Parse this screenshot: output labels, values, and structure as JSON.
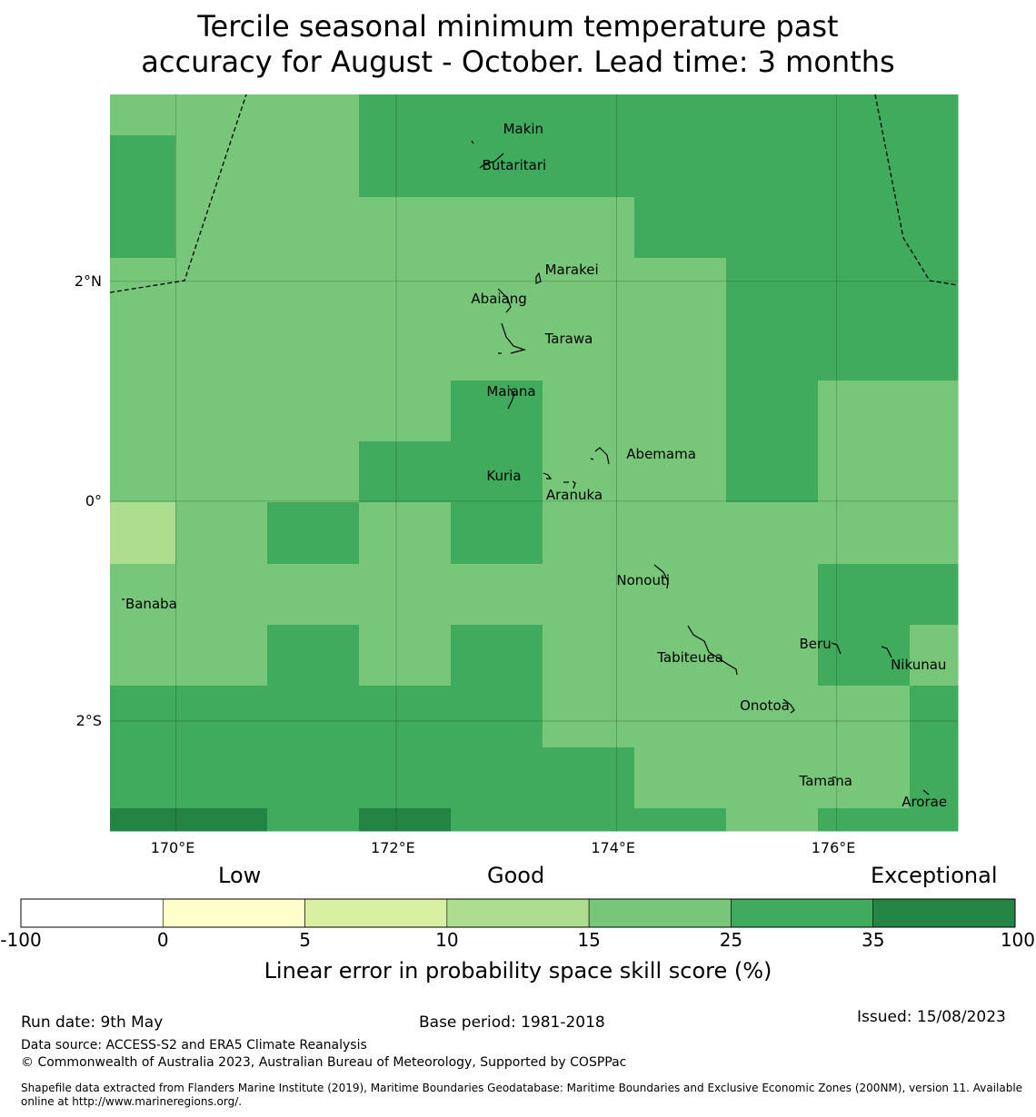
{
  "title": {
    "line1": "Tercile seasonal minimum temperature past",
    "line2": "accuracy for August - October. Lead time: 3 months"
  },
  "map": {
    "lon_range": [
      169.4,
      177.1
    ],
    "lat_range": [
      -3.0,
      3.7
    ],
    "lon_ticks": [
      {
        "value": 170,
        "label": "170°E"
      },
      {
        "value": 172,
        "label": "172°E"
      },
      {
        "value": 174,
        "label": "174°E"
      },
      {
        "value": 176,
        "label": "176°E"
      }
    ],
    "lat_ticks": [
      {
        "value": 2,
        "label": "2°N"
      },
      {
        "value": 0,
        "label": "0°"
      },
      {
        "value": -2,
        "label": "2°S"
      }
    ],
    "places": [
      {
        "name": "Makin",
        "lon": 172.97,
        "lat": 3.38
      },
      {
        "name": "Butaritari",
        "lon": 172.78,
        "lat": 3.05
      },
      {
        "name": "Marakei",
        "lon": 173.35,
        "lat": 2.1
      },
      {
        "name": "Abaiang",
        "lon": 172.68,
        "lat": 1.83
      },
      {
        "name": "Tarawa",
        "lon": 173.35,
        "lat": 1.47
      },
      {
        "name": "Maiana",
        "lon": 172.82,
        "lat": 0.99
      },
      {
        "name": "Abemama",
        "lon": 174.09,
        "lat": 0.42
      },
      {
        "name": "Kuria",
        "lon": 172.82,
        "lat": 0.22
      },
      {
        "name": "Aranuka",
        "lon": 173.36,
        "lat": 0.05
      },
      {
        "name": "Banaba",
        "lon": 169.54,
        "lat": -0.94
      },
      {
        "name": "Nonouti",
        "lon": 174.0,
        "lat": -0.73
      },
      {
        "name": "Tabiteuea",
        "lon": 174.37,
        "lat": -1.43
      },
      {
        "name": "Beru",
        "lon": 175.66,
        "lat": -1.31
      },
      {
        "name": "Nikunau",
        "lon": 176.49,
        "lat": -1.5
      },
      {
        "name": "Onotoa",
        "lon": 175.12,
        "lat": -1.87
      },
      {
        "name": "Tamana",
        "lon": 175.66,
        "lat": -2.55
      },
      {
        "name": "Arorae",
        "lon": 176.59,
        "lat": -2.74
      }
    ]
  },
  "colorbar": {
    "top_labels": [
      "Low",
      "Good",
      "Exceptional"
    ],
    "boundaries": [
      "-100",
      "0",
      "5",
      "10",
      "15",
      "25",
      "35",
      "100"
    ],
    "colors": [
      "#ffffff",
      "#ffffcc",
      "#d9f0a3",
      "#addd8e",
      "#78c679",
      "#41ab5d",
      "#238443"
    ],
    "label": "Linear error in probability space skill score (%)"
  },
  "footer": {
    "run_date": "Run date: 9th May",
    "base_period": "Base period: 1981-2018",
    "issued": "Issued: 15/08/2023",
    "data_source": "Data source: ACCESS-S2 and ERA5 Climate Reanalysis",
    "copyright": "© Commonwealth of Australia 2023, Australian Bureau of Meteorology, Supported by COSPPac",
    "shapefile_line1": "Shapefile data extracted from Flanders Marine Institute (2019), Maritime Boundaries Geodatabase: Maritime Boundaries and Exclusive Economic Zones (200NM), version 11. Available",
    "shapefile_line2": "online at http://www.marineregions.org/."
  }
}
